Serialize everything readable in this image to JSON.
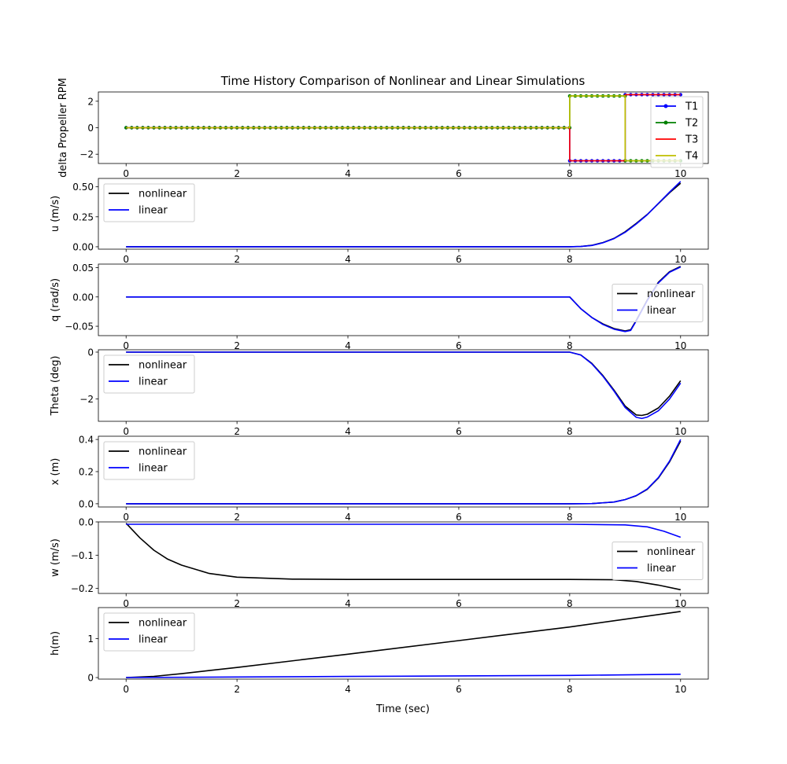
{
  "figure": {
    "title": "Time History Comparison of Nonlinear and Linear Simulations",
    "xlabel": "Time (sec)"
  },
  "chart_data": [
    {
      "type": "line",
      "ylabel": "delta Propeller RPM",
      "xlim": [
        -0.5,
        10.5
      ],
      "ylim": [
        -2.7,
        2.7
      ],
      "xticks": [
        0,
        2,
        4,
        6,
        8,
        10
      ],
      "yticks": [
        -2,
        0,
        2
      ],
      "legend": "right",
      "series": [
        {
          "name": "T1",
          "color": "#0000ff",
          "marker": true,
          "x": [
            0,
            8,
            8,
            9,
            9,
            10
          ],
          "y": [
            0,
            0,
            -2.5,
            -2.5,
            2.5,
            2.5
          ]
        },
        {
          "name": "T2",
          "color": "#008000",
          "marker": true,
          "x": [
            0,
            8,
            8,
            9,
            9,
            10
          ],
          "y": [
            0,
            0,
            2.4,
            2.4,
            -2.5,
            -2.5
          ]
        },
        {
          "name": "T3",
          "color": "#ff0000",
          "marker": false,
          "x": [
            0,
            8,
            8,
            9,
            9,
            10
          ],
          "y": [
            0,
            0,
            -2.5,
            -2.5,
            2.5,
            2.5
          ]
        },
        {
          "name": "T4",
          "color": "#bfbf00",
          "marker": false,
          "x": [
            0,
            8,
            8,
            9,
            9,
            10
          ],
          "y": [
            0,
            0,
            2.4,
            2.4,
            -2.5,
            -2.5
          ]
        }
      ]
    },
    {
      "type": "line",
      "ylabel": "u (m/s)",
      "xlim": [
        -0.5,
        10.5
      ],
      "ylim": [
        -0.02,
        0.57
      ],
      "xticks": [
        0,
        2,
        4,
        6,
        8,
        10
      ],
      "yticks": [
        0.0,
        0.25,
        0.5
      ],
      "yticklabels": [
        "0.00",
        "0.25",
        "0.50"
      ],
      "legend": "top-left",
      "series": [
        {
          "name": "nonlinear",
          "color": "#000000",
          "x": [
            0,
            8,
            8.2,
            8.4,
            8.6,
            8.8,
            9.0,
            9.2,
            9.4,
            9.6,
            9.8,
            10
          ],
          "y": [
            0,
            0,
            0.002,
            0.012,
            0.035,
            0.07,
            0.125,
            0.195,
            0.27,
            0.36,
            0.45,
            0.53
          ]
        },
        {
          "name": "linear",
          "color": "#0000ff",
          "x": [
            0,
            8,
            8.2,
            8.4,
            8.6,
            8.8,
            9.0,
            9.2,
            9.4,
            9.6,
            9.8,
            10
          ],
          "y": [
            0,
            0,
            0.002,
            0.011,
            0.033,
            0.068,
            0.12,
            0.19,
            0.268,
            0.362,
            0.455,
            0.545
          ]
        }
      ]
    },
    {
      "type": "line",
      "ylabel": "q (rad/s)",
      "xlim": [
        -0.5,
        10.5
      ],
      "ylim": [
        -0.066,
        0.056
      ],
      "xticks": [
        0,
        2,
        4,
        6,
        8,
        10
      ],
      "yticks": [
        -0.05,
        0.0,
        0.05
      ],
      "yticklabels": [
        "−0.05",
        "0.00",
        "0.05"
      ],
      "legend": "right",
      "series": [
        {
          "name": "nonlinear",
          "color": "#000000",
          "x": [
            0,
            8,
            8.2,
            8.4,
            8.6,
            8.8,
            9.0,
            9.1,
            9.2,
            9.4,
            9.6,
            9.8,
            10
          ],
          "y": [
            0,
            0,
            -0.02,
            -0.035,
            -0.046,
            -0.054,
            -0.058,
            -0.056,
            -0.04,
            -0.005,
            0.025,
            0.043,
            0.052
          ]
        },
        {
          "name": "linear",
          "color": "#0000ff",
          "x": [
            0,
            8,
            8.2,
            8.4,
            8.6,
            8.8,
            9.0,
            9.1,
            9.2,
            9.4,
            9.6,
            9.8,
            10
          ],
          "y": [
            0,
            0,
            -0.02,
            -0.035,
            -0.047,
            -0.055,
            -0.059,
            -0.057,
            -0.041,
            -0.006,
            0.024,
            0.042,
            0.051
          ]
        }
      ]
    },
    {
      "type": "line",
      "ylabel": "Theta (deg)",
      "xlim": [
        -0.5,
        10.5
      ],
      "ylim": [
        -2.95,
        0.1
      ],
      "xticks": [
        0,
        2,
        4,
        6,
        8,
        10
      ],
      "yticks": [
        -2,
        0
      ],
      "yticklabels": [
        "−2",
        "0"
      ],
      "legend": "top-left",
      "series": [
        {
          "name": "nonlinear",
          "color": "#000000",
          "x": [
            0,
            8,
            8.2,
            8.4,
            8.6,
            8.8,
            9.0,
            9.2,
            9.3,
            9.4,
            9.6,
            9.8,
            10
          ],
          "y": [
            0,
            0,
            -0.12,
            -0.48,
            -1.0,
            -1.62,
            -2.3,
            -2.68,
            -2.7,
            -2.65,
            -2.38,
            -1.88,
            -1.22
          ]
        },
        {
          "name": "linear",
          "color": "#0000ff",
          "x": [
            0,
            8,
            8.2,
            8.4,
            8.6,
            8.8,
            9.0,
            9.2,
            9.3,
            9.4,
            9.6,
            9.8,
            10
          ],
          "y": [
            0,
            0,
            -0.12,
            -0.5,
            -1.03,
            -1.66,
            -2.36,
            -2.78,
            -2.83,
            -2.77,
            -2.5,
            -2.0,
            -1.32
          ]
        }
      ]
    },
    {
      "type": "line",
      "ylabel": "x (m)",
      "xlim": [
        -0.5,
        10.5
      ],
      "ylim": [
        -0.02,
        0.42
      ],
      "xticks": [
        0,
        2,
        4,
        6,
        8,
        10
      ],
      "yticks": [
        0.0,
        0.2,
        0.4
      ],
      "yticklabels": [
        "0.0",
        "0.2",
        "0.4"
      ],
      "legend": "top-left",
      "series": [
        {
          "name": "nonlinear",
          "color": "#000000",
          "x": [
            0,
            8,
            8.4,
            8.8,
            9.0,
            9.2,
            9.4,
            9.6,
            9.8,
            10
          ],
          "y": [
            0,
            0,
            0.001,
            0.011,
            0.026,
            0.05,
            0.09,
            0.16,
            0.26,
            0.39
          ]
        },
        {
          "name": "linear",
          "color": "#0000ff",
          "x": [
            0,
            8,
            8.4,
            8.8,
            9.0,
            9.2,
            9.4,
            9.6,
            9.8,
            10
          ],
          "y": [
            0,
            0,
            0.001,
            0.011,
            0.026,
            0.051,
            0.092,
            0.163,
            0.265,
            0.4
          ]
        }
      ]
    },
    {
      "type": "line",
      "ylabel": "w (m/s)",
      "xlim": [
        -0.5,
        10.5
      ],
      "ylim": [
        -0.215,
        0.0
      ],
      "xticks": [
        0,
        2,
        4,
        6,
        8,
        10
      ],
      "yticks": [
        -0.2,
        -0.1,
        0.0
      ],
      "yticklabels": [
        "−0.2",
        "−0.1",
        "0.0"
      ],
      "legend": "right",
      "series": [
        {
          "name": "nonlinear",
          "color": "#000000",
          "x": [
            0,
            0.25,
            0.5,
            0.75,
            1.0,
            1.5,
            2.0,
            3.0,
            4.0,
            6.0,
            8.0,
            8.8,
            9.2,
            9.6,
            10
          ],
          "y": [
            -0.004,
            -0.048,
            -0.085,
            -0.112,
            -0.13,
            -0.155,
            -0.166,
            -0.172,
            -0.173,
            -0.173,
            -0.173,
            -0.174,
            -0.179,
            -0.19,
            -0.204
          ]
        },
        {
          "name": "linear",
          "color": "#0000ff",
          "x": [
            0,
            1,
            2,
            4,
            6,
            8,
            9.0,
            9.4,
            9.7,
            10
          ],
          "y": [
            -0.007,
            -0.007,
            -0.007,
            -0.007,
            -0.007,
            -0.007,
            -0.009,
            -0.015,
            -0.028,
            -0.046
          ]
        }
      ]
    },
    {
      "type": "line",
      "ylabel": "h(m)",
      "xlim": [
        -0.5,
        10.5
      ],
      "ylim": [
        -0.04,
        1.8
      ],
      "xticks": [
        0,
        2,
        4,
        6,
        8,
        10
      ],
      "yticks": [
        0,
        1
      ],
      "yticklabels": [
        "0",
        "1"
      ],
      "legend": "top-left",
      "series": [
        {
          "name": "nonlinear",
          "color": "#000000",
          "x": [
            0,
            0.5,
            1,
            1.5,
            2,
            4,
            6,
            8,
            10
          ],
          "y": [
            0,
            0.03,
            0.1,
            0.18,
            0.26,
            0.6,
            0.95,
            1.3,
            1.7
          ]
        },
        {
          "name": "linear",
          "color": "#0000ff",
          "x": [
            0,
            2,
            4,
            6,
            8,
            10
          ],
          "y": [
            0,
            0.014,
            0.028,
            0.042,
            0.056,
            0.085
          ]
        }
      ]
    }
  ]
}
